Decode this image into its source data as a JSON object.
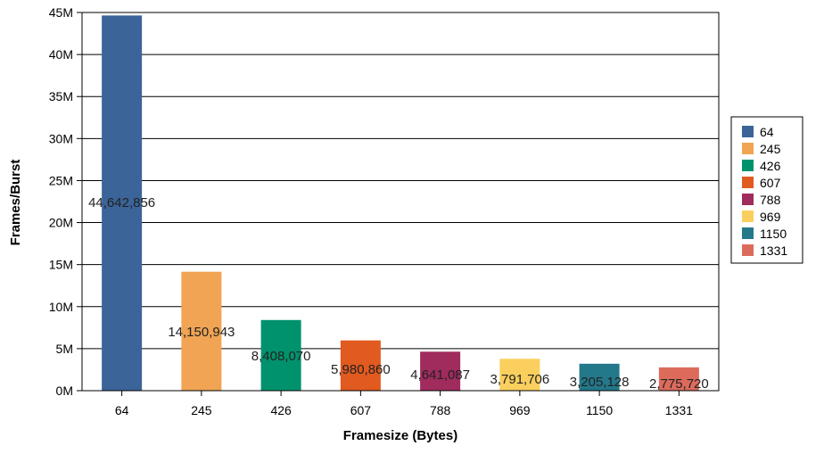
{
  "chart_data": {
    "type": "bar",
    "title": "",
    "xlabel": "Framesize (Bytes)",
    "ylabel": "Frames/Burst",
    "categories": [
      "64",
      "245",
      "426",
      "607",
      "788",
      "969",
      "1150",
      "1331"
    ],
    "values": [
      44642856,
      14150943,
      8408070,
      5980860,
      4641087,
      3791706,
      3205128,
      2775720
    ],
    "data_labels": [
      "44,642,856",
      "14,150,943",
      "8,408,070",
      "5,980,860",
      "4,641,087",
      "3,791,706",
      "3,205,128",
      "2,775,720"
    ],
    "colors": [
      "#3b6499",
      "#f0a454",
      "#00926c",
      "#e15a1f",
      "#a02b5d",
      "#fbcf5d",
      "#23788a",
      "#dc6b5c"
    ],
    "ylim": [
      0,
      45000000
    ],
    "y_ticks": [
      0,
      5000000,
      10000000,
      15000000,
      20000000,
      25000000,
      30000000,
      35000000,
      40000000,
      45000000
    ],
    "y_tick_labels": [
      "0M",
      "5M",
      "10M",
      "15M",
      "20M",
      "25M",
      "30M",
      "35M",
      "40M",
      "45M"
    ],
    "grid": true,
    "legend": {
      "placement": "right",
      "entries": [
        "64",
        "245",
        "426",
        "607",
        "788",
        "969",
        "1150",
        "1331"
      ]
    }
  }
}
